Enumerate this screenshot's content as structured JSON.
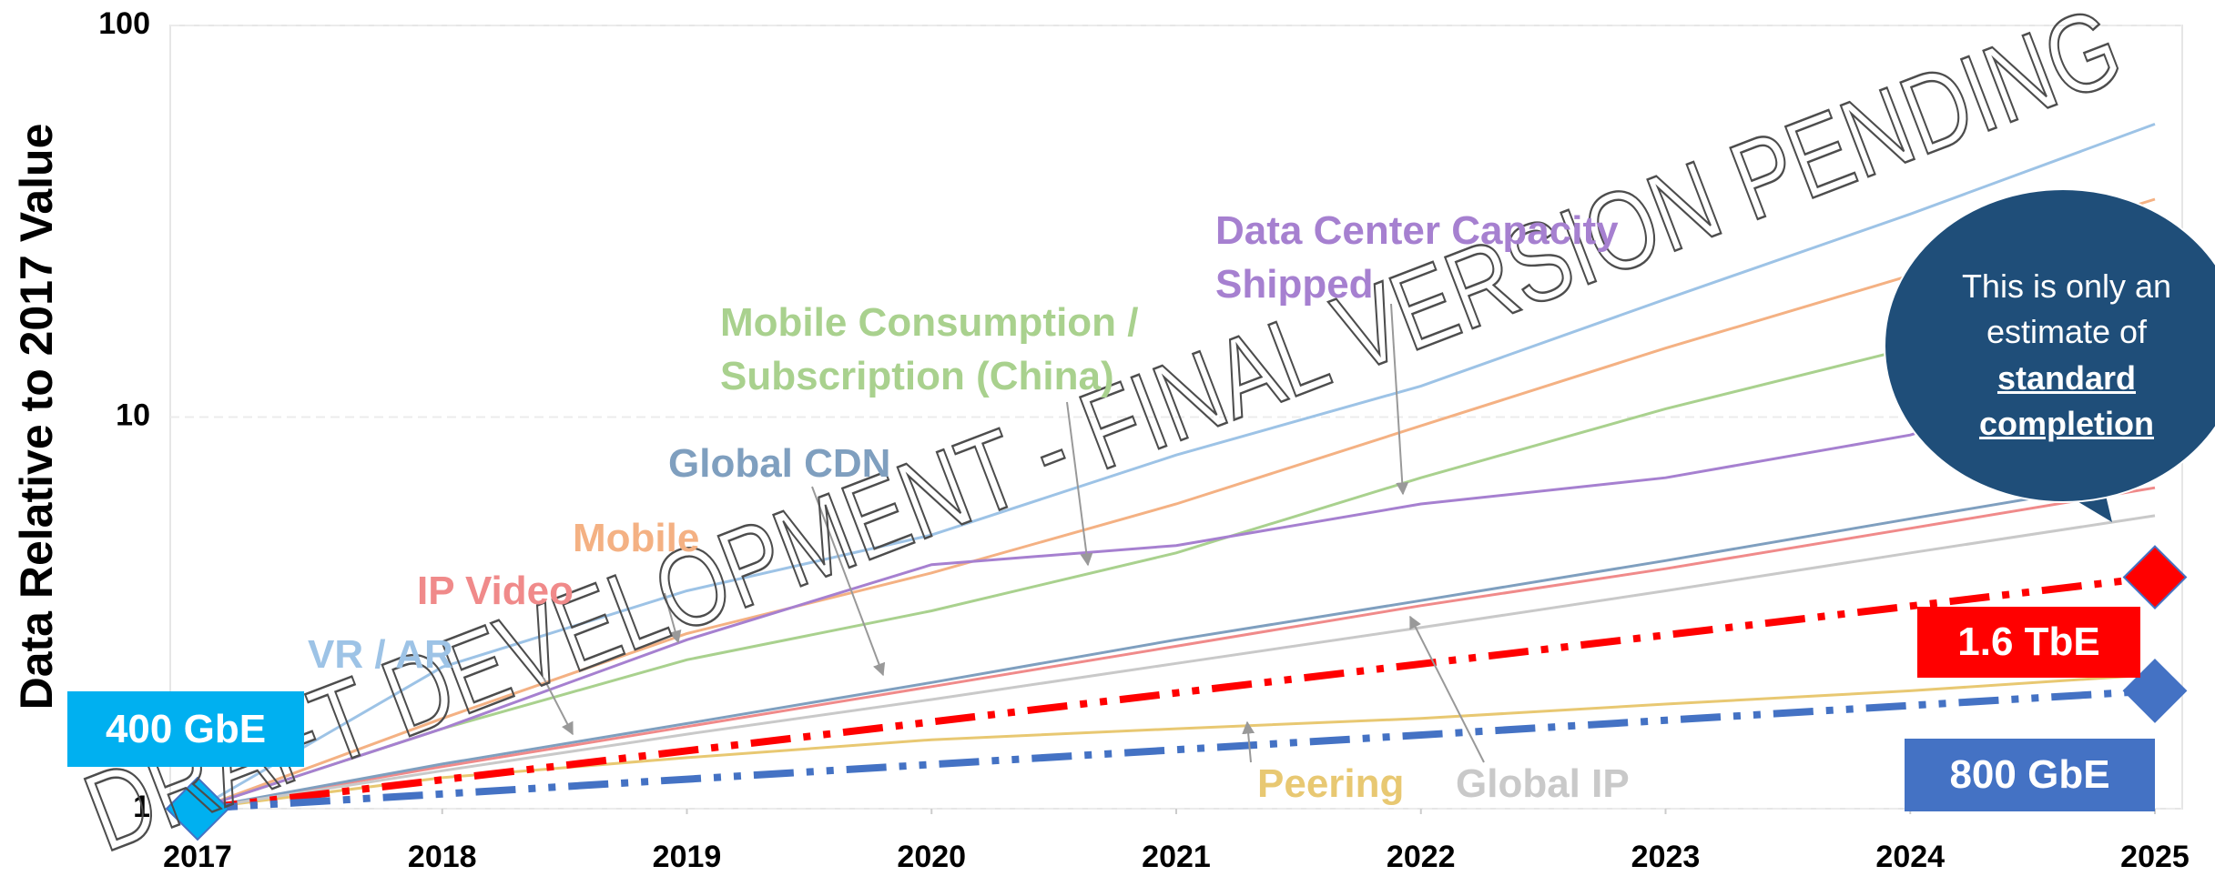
{
  "chart_data": {
    "type": "line",
    "y_label": "Data Relative to 2017 Value",
    "yscale": "log",
    "ylim": [
      1,
      100
    ],
    "yticks": [
      1,
      10,
      100
    ],
    "xlim": [
      2017,
      2025
    ],
    "xticks": [
      2017,
      2018,
      2019,
      2020,
      2021,
      2022,
      2023,
      2024,
      2025
    ],
    "grid": true,
    "series": [
      {
        "name": "VR / AR",
        "color": "#9dc3e6",
        "x": [
          2017,
          2018,
          2019,
          2020,
          2021,
          2022,
          2023,
          2024,
          2025
        ],
        "values": [
          1,
          2.3,
          3.6,
          5,
          8,
          12,
          20,
          33,
          56
        ]
      },
      {
        "name": "Mobile",
        "color": "#f4b183",
        "x": [
          2017,
          2018,
          2019,
          2020,
          2021,
          2022,
          2023,
          2024,
          2025
        ],
        "values": [
          1,
          1.7,
          2.8,
          4,
          6,
          9.5,
          15,
          23,
          36
        ]
      },
      {
        "name": "IP Video",
        "color": "#f08a8a",
        "x": [
          2017,
          2018,
          2019,
          2020,
          2021,
          2022,
          2023,
          2024,
          2025
        ],
        "values": [
          1,
          1.28,
          1.62,
          2.05,
          2.6,
          3.3,
          4.1,
          5.2,
          6.6
        ]
      },
      {
        "name": "Global CDN",
        "color": "#7f9fbf",
        "x": [
          2017,
          2018,
          2019,
          2020,
          2021,
          2022,
          2023,
          2024,
          2025
        ],
        "values": [
          1,
          1.3,
          1.65,
          2.1,
          2.7,
          3.4,
          4.3,
          5.5,
          7
        ]
      },
      {
        "name": "Mobile Consumption / Subscription (China)",
        "color": "#a9d18e",
        "x": [
          2017,
          2018,
          2019,
          2020,
          2021,
          2022,
          2023,
          2024,
          2025
        ],
        "values": [
          1,
          1.6,
          2.4,
          3.2,
          4.5,
          7,
          10.5,
          15,
          21
        ]
      },
      {
        "name": "Data Center Capacity Shipped",
        "color": "#a680d0",
        "x": [
          2017,
          2018,
          2019,
          2020,
          2021,
          2022,
          2023,
          2024,
          2025
        ],
        "values": [
          1,
          1.6,
          2.7,
          4.2,
          4.7,
          6,
          7,
          9,
          14
        ]
      },
      {
        "name": "Peering",
        "color": "#e8c872",
        "x": [
          2017,
          2018,
          2019,
          2020,
          2021,
          2022,
          2023,
          2024,
          2025
        ],
        "values": [
          1,
          1.2,
          1.35,
          1.5,
          1.6,
          1.7,
          1.85,
          2,
          2.2
        ]
      },
      {
        "name": "Global IP",
        "color": "#c9c9c9",
        "x": [
          2017,
          2018,
          2019,
          2020,
          2021,
          2022,
          2023,
          2024,
          2025
        ],
        "values": [
          1,
          1.25,
          1.55,
          1.9,
          2.35,
          2.9,
          3.6,
          4.5,
          5.6
        ]
      },
      {
        "name": "1.6 TbE",
        "color": "#ff0000",
        "dashed": true,
        "x": [
          2017,
          2025
        ],
        "values": [
          1,
          3.9
        ]
      },
      {
        "name": "800 GbE",
        "color": "#4472c4",
        "dashed": true,
        "x": [
          2017,
          2025
        ],
        "values": [
          1,
          2
        ]
      }
    ],
    "start_label": "400 GbE",
    "start_color": "#00b0f0",
    "callout": {
      "text": "This is only an estimate of",
      "emphasis": "standard completion",
      "color": "#1f4e79"
    },
    "watermark": "DRAFT DEVELOPMENT - FINAL VERSION PENDING"
  }
}
